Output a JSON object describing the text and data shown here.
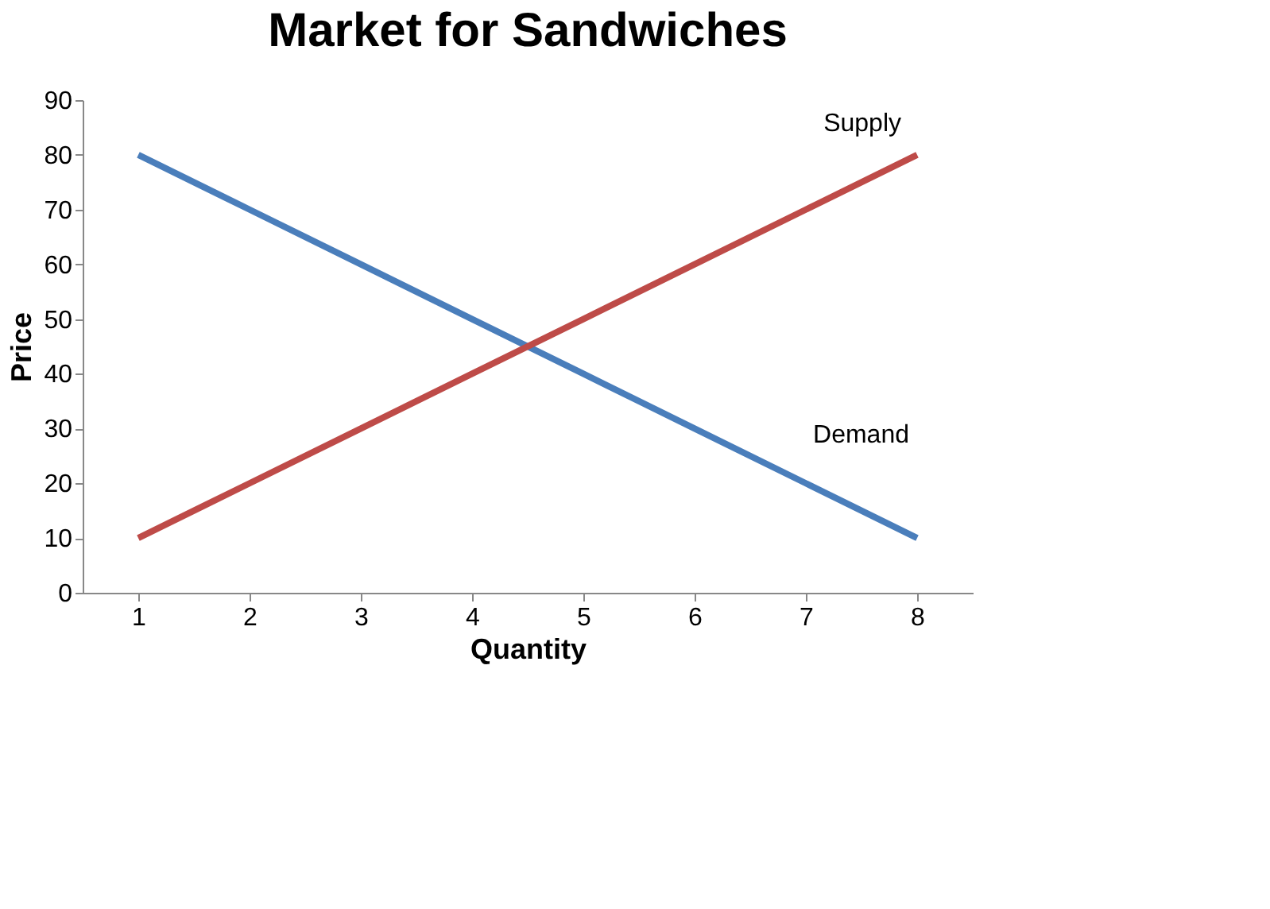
{
  "chart_data": {
    "type": "line",
    "title": "Market for Sandwiches",
    "xlabel": "Quantity",
    "ylabel": "Price",
    "categories": [
      "1",
      "2",
      "3",
      "4",
      "5",
      "6",
      "7",
      "8"
    ],
    "series": [
      {
        "name": "Demand",
        "color": "#4a7ebb",
        "values": [
          80,
          70,
          60,
          50,
          40,
          30,
          20,
          10
        ]
      },
      {
        "name": "Supply",
        "color": "#be4b48",
        "values": [
          10,
          20,
          30,
          40,
          50,
          60,
          70,
          80
        ]
      }
    ],
    "ylim": [
      0,
      90
    ],
    "yticks": [
      0,
      10,
      20,
      30,
      40,
      50,
      60,
      70,
      80,
      90
    ],
    "grid": false,
    "legend": false,
    "marker": "none",
    "line_style": "solid"
  }
}
